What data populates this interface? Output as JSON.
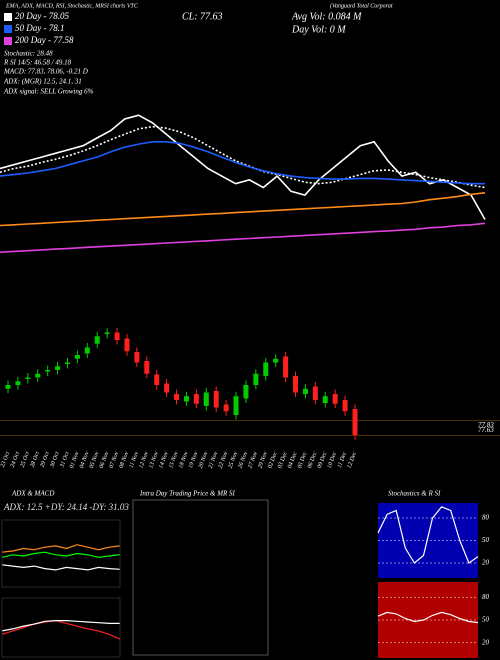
{
  "chart_data": [
    {
      "type": "line",
      "title": "EMA, ADX, MACD, RSI, Stochastic, MRSI charts VTC",
      "subtitle": "(Vanguard Total Corporat",
      "annotations": [
        "Stochastic: 28.48",
        "R SI 14/5: 46.58 / 49.18",
        "MACD: 77.83, 78.06, -0.21 D",
        "ADX: (MGR) 12.5, 24.1, 31",
        "ADX signal: SELL Growing 6%",
        "CL: 77.63",
        "Avg Vol: 0.084 M",
        "Day Vol: 0 M"
      ],
      "ylim": [
        76.9,
        79.2
      ],
      "series": [
        {
          "name": "CL: 77.63",
          "color": "#ffffff",
          "values": [
            78.3,
            78.35,
            78.4,
            78.45,
            78.5,
            78.55,
            78.6,
            78.7,
            78.8,
            78.95,
            79.0,
            78.9,
            78.75,
            78.6,
            78.45,
            78.3,
            78.2,
            78.1,
            78.15,
            78.05,
            78.2,
            78.0,
            77.95,
            78.15,
            78.3,
            78.45,
            78.6,
            78.65,
            78.4,
            78.2,
            78.25,
            78.1,
            78.15,
            78.05,
            77.95,
            77.63
          ]
        },
        {
          "name": "20 Day - 78.05",
          "color": "#ffffff",
          "dash": true,
          "values": [
            78.25,
            78.3,
            78.33,
            78.38,
            78.42,
            78.47,
            78.53,
            78.6,
            78.68,
            78.75,
            78.82,
            78.85,
            78.83,
            78.78,
            78.7,
            78.6,
            78.5,
            78.4,
            78.33,
            78.26,
            78.22,
            78.17,
            78.12,
            78.1,
            78.12,
            78.17,
            78.22,
            78.27,
            78.28,
            78.25,
            78.22,
            78.18,
            78.15,
            78.12,
            78.08,
            78.05
          ]
        },
        {
          "name": "50 Day - 78.1",
          "color": "#1e5cff",
          "values": [
            78.2,
            78.22,
            78.24,
            78.27,
            78.3,
            78.35,
            78.4,
            78.45,
            78.52,
            78.58,
            78.62,
            78.65,
            78.65,
            78.63,
            78.58,
            78.52,
            78.45,
            78.38,
            78.32,
            78.27,
            78.23,
            78.2,
            78.18,
            78.17,
            78.16,
            78.16,
            78.17,
            78.17,
            78.16,
            78.15,
            78.14,
            78.13,
            78.12,
            78.11,
            78.1,
            78.1
          ]
        },
        {
          "color": "#ff8c1a",
          "values": [
            77.55,
            77.56,
            77.57,
            77.58,
            77.59,
            77.6,
            77.61,
            77.62,
            77.63,
            77.64,
            77.65,
            77.66,
            77.67,
            77.68,
            77.69,
            77.7,
            77.71,
            77.72,
            77.73,
            77.74,
            77.75,
            77.76,
            77.77,
            77.78,
            77.79,
            77.8,
            77.81,
            77.82,
            77.83,
            77.84,
            77.86,
            77.89,
            77.91,
            77.93,
            77.96,
            77.98
          ]
        },
        {
          "name": "200 Day - 77.58",
          "color": "#e040e0",
          "values": [
            77.2,
            77.21,
            77.22,
            77.23,
            77.24,
            77.25,
            77.26,
            77.27,
            77.28,
            77.29,
            77.3,
            77.31,
            77.32,
            77.33,
            77.34,
            77.35,
            77.36,
            77.37,
            77.38,
            77.39,
            77.4,
            77.41,
            77.42,
            77.43,
            77.44,
            77.45,
            77.46,
            77.47,
            77.48,
            77.49,
            77.5,
            77.52,
            77.53,
            77.55,
            77.56,
            77.58
          ]
        }
      ]
    },
    {
      "type": "candlestick",
      "up_color": "#00cc00",
      "down_color": "#ff2020",
      "ylim": [
        77.5,
        79.3
      ],
      "yticks": [
        77.63,
        77.83
      ],
      "categories": [
        "23 Oct",
        "24 Oct",
        "25 Oct",
        "28 Oct",
        "29 Oct",
        "30 Oct",
        "31 Oct",
        "01 Nov",
        "04 Nov",
        "05 Nov",
        "06 Nov",
        "07 Nov",
        "08 Nov",
        "11 Nov",
        "12 Nov",
        "13 Nov",
        "14 Nov",
        "15 Nov",
        "18 Nov",
        "19 Nov",
        "20 Nov",
        "21 Nov",
        "22 Nov",
        "25 Nov",
        "26 Nov",
        "27 Nov",
        "29 Nov",
        "02 Dec",
        "03 Dec",
        "04 Dec",
        "05 Dec",
        "06 Dec",
        "09 Dec",
        "10 Dec",
        "11 Dec",
        "12 Dec"
      ],
      "opens": [
        78.25,
        78.3,
        78.38,
        78.4,
        78.48,
        78.5,
        78.58,
        78.65,
        78.72,
        78.85,
        78.98,
        79.0,
        78.92,
        78.74,
        78.62,
        78.44,
        78.32,
        78.18,
        78.08,
        78.18,
        78.02,
        78.22,
        78.04,
        77.9,
        78.12,
        78.3,
        78.42,
        78.6,
        78.68,
        78.42,
        78.18,
        78.28,
        78.06,
        78.18,
        78.1,
        77.98
      ],
      "highs": [
        78.36,
        78.41,
        78.46,
        78.51,
        78.56,
        78.61,
        78.66,
        78.76,
        78.86,
        79.01,
        79.06,
        79.06,
        78.98,
        78.8,
        78.68,
        78.5,
        78.38,
        78.24,
        78.21,
        78.24,
        78.26,
        78.28,
        78.1,
        78.21,
        78.36,
        78.51,
        78.66,
        78.71,
        78.74,
        78.48,
        78.31,
        78.34,
        78.21,
        78.24,
        78.16,
        78.04
      ],
      "lows": [
        78.19,
        78.24,
        78.32,
        78.34,
        78.42,
        78.44,
        78.52,
        78.59,
        78.66,
        78.79,
        78.92,
        78.84,
        78.69,
        78.54,
        78.39,
        78.24,
        78.14,
        78.04,
        78.02,
        77.99,
        77.96,
        77.94,
        77.89,
        77.84,
        78.06,
        78.24,
        78.36,
        78.54,
        78.34,
        78.14,
        78.12,
        78.04,
        78.0,
        77.99,
        77.89,
        77.57
      ],
      "closes": [
        78.3,
        78.35,
        78.4,
        78.45,
        78.5,
        78.55,
        78.6,
        78.7,
        78.8,
        78.95,
        79.0,
        78.9,
        78.75,
        78.6,
        78.45,
        78.3,
        78.2,
        78.1,
        78.15,
        78.05,
        78.2,
        78.0,
        77.95,
        78.15,
        78.3,
        78.45,
        78.6,
        78.65,
        78.4,
        78.2,
        78.25,
        78.1,
        78.15,
        78.05,
        77.95,
        77.63
      ]
    },
    {
      "type": "line",
      "title": "ADX  & MACD",
      "subtitle": "ADX: 12.5  +DY: 24.14  -DY: 31.03",
      "ylim": [
        0,
        50
      ],
      "series": [
        {
          "color": "#00ff00",
          "values": [
            22,
            24,
            23,
            25,
            26,
            24,
            23,
            25,
            24,
            22,
            23,
            24.14
          ]
        },
        {
          "color": "#ff8c1a",
          "values": [
            26,
            27,
            29,
            28,
            30,
            31,
            29,
            32,
            30,
            28,
            30,
            31.03
          ]
        },
        {
          "color": "#ffffff",
          "values": [
            16,
            15,
            14,
            15,
            13,
            12,
            14,
            13,
            12,
            14,
            13,
            12.5
          ]
        }
      ]
    },
    {
      "type": "line",
      "ylim": [
        77.6,
        78.4
      ],
      "series": [
        {
          "color": "#ff2020",
          "values": [
            77.9,
            77.95,
            78.0,
            78.05,
            78.08,
            78.1,
            78.06,
            78.02,
            77.98,
            77.95,
            77.9,
            77.83
          ]
        },
        {
          "color": "#ffffff",
          "values": [
            77.95,
            77.98,
            78.02,
            78.05,
            78.09,
            78.1,
            78.1,
            78.09,
            78.08,
            78.07,
            78.06,
            78.06
          ]
        }
      ]
    },
    {
      "type": "empty",
      "title": "Intra Day Trading Price  & MR SI"
    },
    {
      "type": "line",
      "title": "Stochastics & R SI",
      "background": "#0000b0",
      "ylim": [
        0,
        100
      ],
      "yticks": [
        20,
        50,
        80
      ],
      "series": [
        {
          "color": "#ffffff",
          "values": [
            60,
            85,
            90,
            40,
            20,
            30,
            80,
            95,
            90,
            50,
            20,
            28.48
          ]
        }
      ]
    },
    {
      "type": "line",
      "background": "#b00000",
      "ylim": [
        0,
        100
      ],
      "yticks": [
        20,
        50,
        80
      ],
      "series": [
        {
          "color": "#ffffff",
          "values": [
            55,
            60,
            58,
            52,
            48,
            50,
            56,
            60,
            57,
            52,
            48,
            46.58
          ]
        }
      ]
    }
  ]
}
